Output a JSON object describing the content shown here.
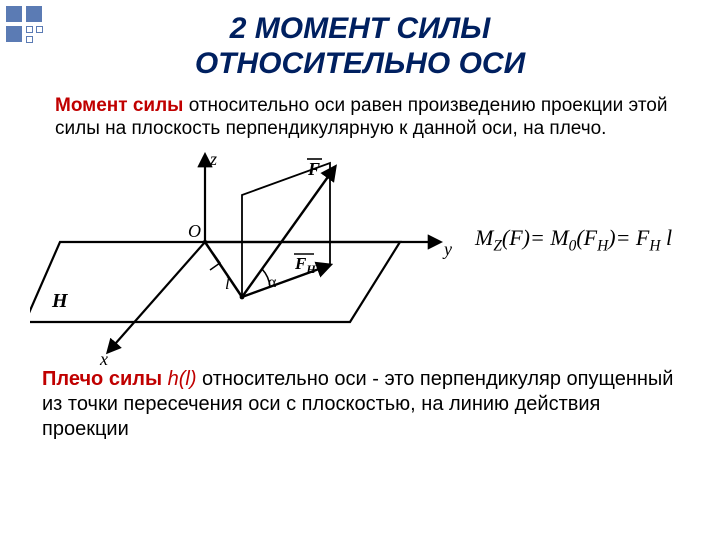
{
  "title_line1": "2 МОМЕНТ  СИЛЫ",
  "title_line2": "ОТНОСИТЕЛЬНО ОСИ",
  "p1_lead": "Момент силы",
  "p1_rest": " относительно оси   равен произведению  проекции этой силы на плоскость перпендикулярную к данной  оси, на плечо.",
  "formula_html": "M<sub>Z</sub>(F)= M<sub>0</sub>(F<sub>H</sub>)= F<sub>H</sub> l",
  "p2_lead": "Плечо силы ",
  "p2_hl": "h(l)",
  "p2_rest": " относительно оси - это  перпендикуляр опущенный из точки пересечения оси с плоскостью, на линию действия  проекции",
  "diagram": {
    "axis_z": "z",
    "axis_y": "y",
    "axis_x": "x",
    "origin": "O",
    "plane": "H",
    "vecF": "F",
    "vecFH": "F",
    "vecFH_sub": "H",
    "angle": "α",
    "l": "l"
  }
}
